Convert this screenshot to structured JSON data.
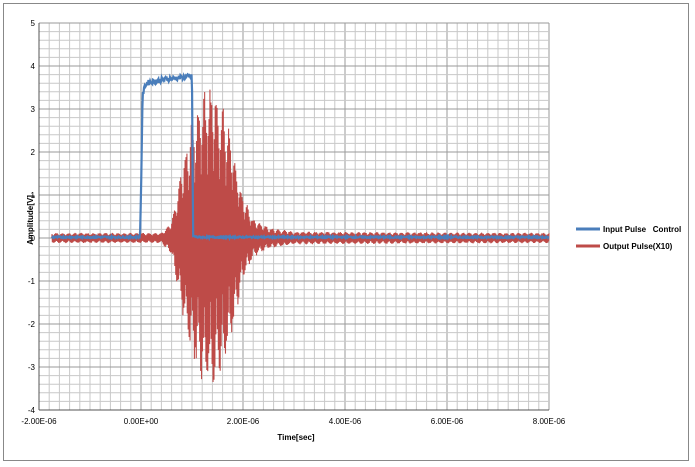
{
  "chart_data": {
    "type": "line",
    "title": "",
    "xlabel": "Time[sec]",
    "ylabel": "Amplitude[V]",
    "xlim": [
      -2e-06,
      8e-06
    ],
    "ylim": [
      -4,
      5
    ],
    "x_ticks": [
      {
        "value": -2e-06,
        "label": "-2.00E-06"
      },
      {
        "value": 0.0,
        "label": "0.00E+00"
      },
      {
        "value": 2e-06,
        "label": "2.00E-06"
      },
      {
        "value": 4e-06,
        "label": "4.00E-06"
      },
      {
        "value": 6e-06,
        "label": "6.00E-06"
      },
      {
        "value": 8e-06,
        "label": "8.00E-06"
      }
    ],
    "y_ticks": [
      {
        "value": 5,
        "label": "5"
      },
      {
        "value": 4,
        "label": "4"
      },
      {
        "value": 3,
        "label": "3"
      },
      {
        "value": 2,
        "label": "2"
      },
      {
        "value": 1,
        "label": "1"
      },
      {
        "value": 0,
        "label": "0"
      },
      {
        "value": -1,
        "label": "-1"
      },
      {
        "value": -2,
        "label": "-2"
      },
      {
        "value": -3,
        "label": "-3"
      },
      {
        "value": -4,
        "label": "-4"
      }
    ],
    "grid": true,
    "legend": "right",
    "series": [
      {
        "name": "Input Pulse   Control",
        "color": "#4a7ebb",
        "kind": "pulse",
        "x": [
          -1.75e-06,
          -3e-07,
          -2e-08,
          0.0,
          3e-08,
          8e-08,
          1.5e-07,
          3e-07,
          5e-07,
          7e-07,
          9e-07,
          1e-06,
          1.02e-06,
          1.1e-06,
          1.5e-06,
          2.5e-06,
          4e-06,
          6e-06,
          8e-06
        ],
        "y": [
          0.02,
          0.02,
          0.02,
          1.0,
          3.3,
          3.55,
          3.62,
          3.65,
          3.7,
          3.72,
          3.75,
          3.75,
          0.05,
          0.02,
          0.02,
          0.02,
          0.02,
          0.02,
          0.02
        ]
      },
      {
        "name": "Output Pulse(X10)",
        "color": "#be4b48",
        "kind": "burst",
        "x": [
          -1.75e-06,
          4e-07,
          6e-07,
          8e-07,
          1e-06,
          1.2e-06,
          1.4e-06,
          1.6e-06,
          1.8e-06,
          2e-06,
          2.2e-06,
          2.5e-06,
          3e-06,
          8e-06
        ],
        "y": [
          0.12,
          0.12,
          0.4,
          1.7,
          2.8,
          3.4,
          3.55,
          3.2,
          2.2,
          1.0,
          0.45,
          0.25,
          0.15,
          0.12
        ]
      }
    ]
  }
}
